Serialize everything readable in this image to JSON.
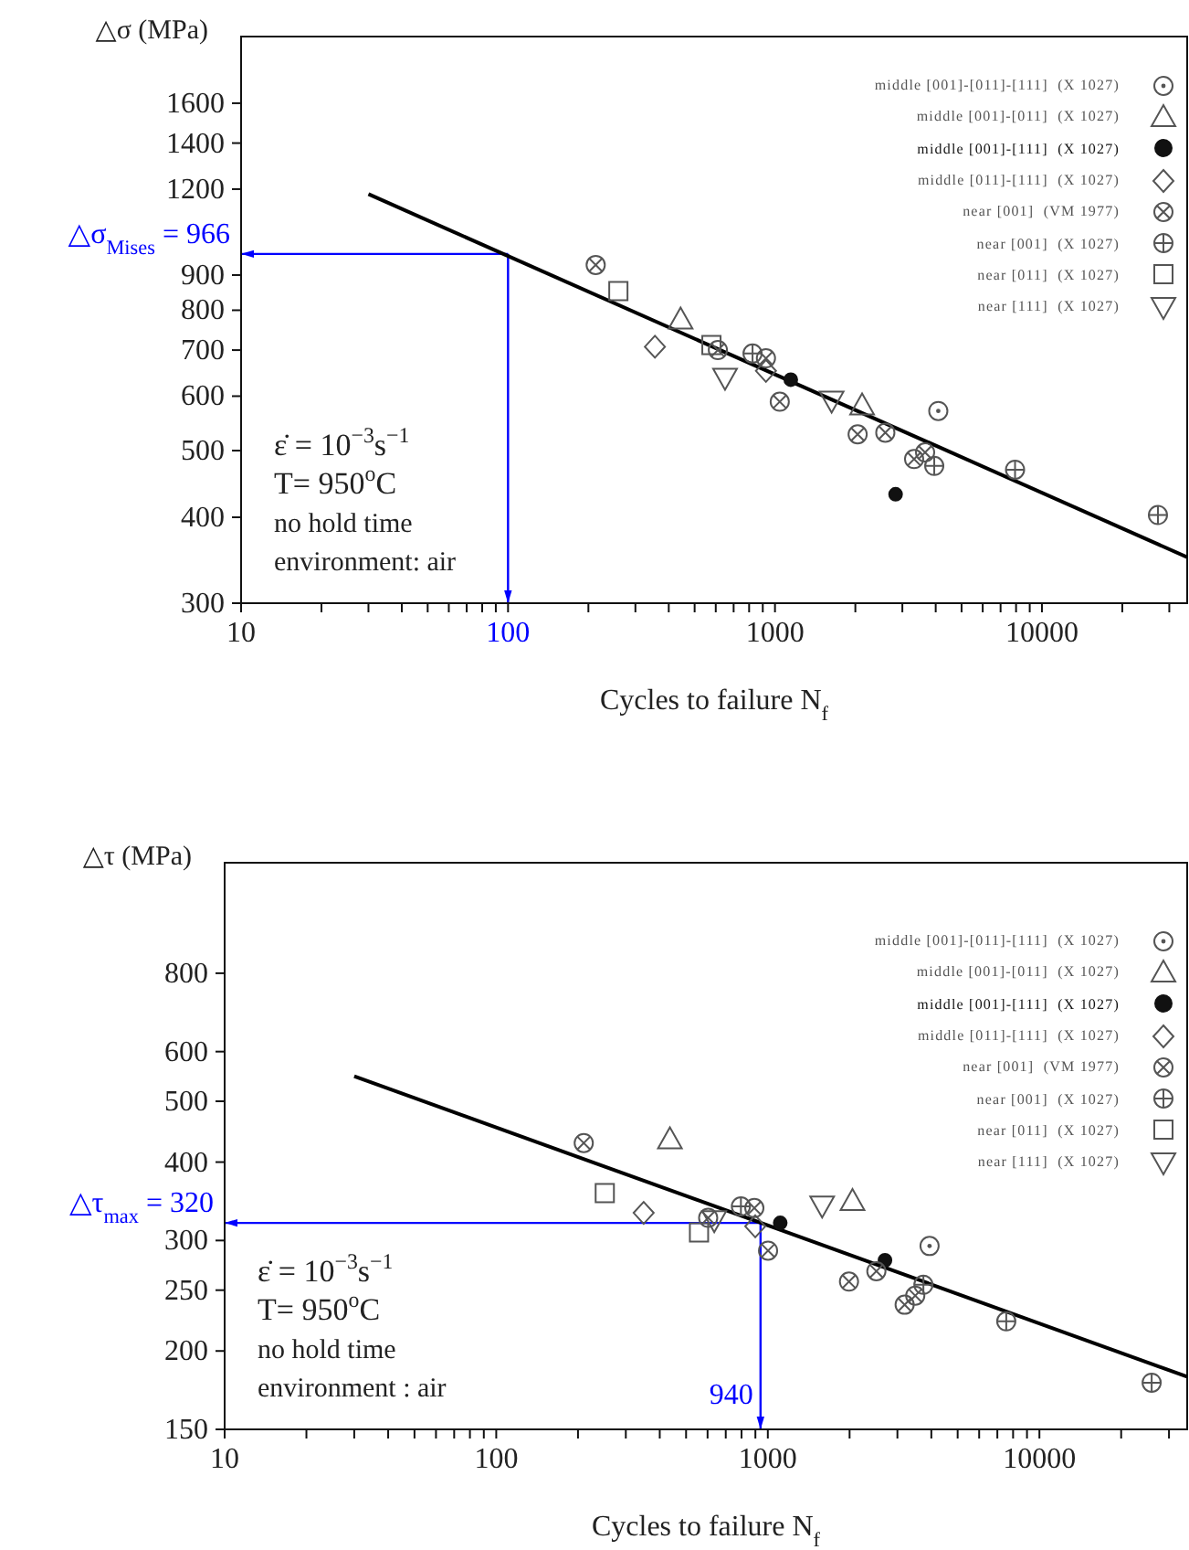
{
  "chart_data": [
    {
      "type": "scatter",
      "xlabel": "Cycles to failure N$_{f}$",
      "ylabel": "△σ (MPa)",
      "log": "xy",
      "legend": "top right",
      "xlim": [
        10,
        35000
      ],
      "ylim": [
        300,
        2000
      ],
      "xticks": [
        10,
        {
          "value": 20,
          "label": null
        },
        {
          "value": 30,
          "label": null
        },
        {
          "value": 40,
          "label": null
        },
        {
          "value": 50,
          "label": null
        },
        {
          "value": 60,
          "label": null
        },
        {
          "value": 70,
          "label": null
        },
        {
          "value": 80,
          "label": null
        },
        {
          "value": 90,
          "label": null
        },
        100,
        {
          "value": 200,
          "label": null
        },
        {
          "value": 300,
          "label": null
        },
        {
          "value": 400,
          "label": null
        },
        {
          "value": 500,
          "label": null
        },
        {
          "value": 600,
          "label": null
        },
        {
          "value": 700,
          "label": null
        },
        {
          "value": 800,
          "label": null
        },
        {
          "value": 900,
          "label": null
        },
        1000,
        {
          "value": 2000,
          "label": null
        },
        {
          "value": 3000,
          "label": null
        },
        {
          "value": 4000,
          "label": null
        },
        {
          "value": 5000,
          "label": null
        },
        {
          "value": 6000,
          "label": null
        },
        {
          "value": 7000,
          "label": null
        },
        {
          "value": 8000,
          "label": null
        },
        {
          "value": 9000,
          "label": null
        },
        10000,
        {
          "value": 20000,
          "label": null
        },
        {
          "value": 30000,
          "label": null
        }
      ],
      "yticks": [
        300,
        400,
        500,
        600,
        700,
        800,
        900,
        1200,
        1400,
        1600
      ],
      "series": [
        {
          "name": "middle [001]-[011]-[111]  (X 1027)",
          "color": "#555555",
          "marker": "circle-dot",
          "x": [
            4090
          ],
          "values": [
            571
          ]
        },
        {
          "name": "middle [001]-[011]  (X 1027)",
          "color": "#555555",
          "marker": "triangle",
          "x": [
            443,
            2120
          ],
          "values": [
            776,
            582
          ]
        },
        {
          "name": "middle [001]-[111]  (X 1027)",
          "color": "#111111",
          "marker": "circle",
          "x": [
            1146,
            2830
          ],
          "values": [
            634,
            432
          ]
        },
        {
          "name": "middle [011]-[111]  (X 1027)",
          "color": "#555555",
          "marker": "diamond",
          "x": [
            355,
            925
          ],
          "values": [
            708,
            653
          ]
        },
        {
          "name": "near [001]  (VM 1977)",
          "color": "#555555",
          "marker": "circle-x",
          "x": [
            213,
            611,
            925,
            1042,
            2040,
            2590,
            3320,
            3650
          ],
          "values": [
            931,
            700,
            681,
            589,
            528,
            531,
            486,
            497
          ]
        },
        {
          "name": "near [001]  (X 1027)",
          "color": "#555555",
          "marker": "circle-plus",
          "x": [
            824,
            3950,
            7930,
            27200
          ],
          "values": [
            692,
            475,
            469,
            403
          ]
        },
        {
          "name": "near [011]  (X 1027)",
          "color": "#555555",
          "marker": "square",
          "x": [
            259,
            578
          ],
          "values": [
            853,
            712
          ]
        },
        {
          "name": "near [111]  (X 1027)",
          "color": "#555555",
          "marker": "triangle-down",
          "x": [
            650,
            1630
          ],
          "values": [
            638,
            591
          ]
        },
        {
          "type": "line",
          "color": "#000000",
          "x": [
            30,
            35000
          ],
          "values": [
            1180,
            350
          ]
        }
      ],
      "ref_lines": [
        {
          "axis": "y",
          "value": 966,
          "label": "△σ$_{Mises}$ = 966",
          "color": "#0000ff"
        },
        {
          "axis": "x",
          "value": 100,
          "color": "#0000ff"
        }
      ],
      "annotations": [
        "ε̇ = 10$^{−3}$s$^{−1}$",
        "T= 950$^{o}$C",
        "no hold time",
        "environment:  air"
      ]
    },
    {
      "type": "scatter",
      "xlabel": "Cycles to failure N$_{f}$",
      "ylabel": "△τ (MPa)",
      "log": "xy",
      "legend": "top right",
      "xlim": [
        10,
        35000
      ],
      "ylim": [
        150,
        1200
      ],
      "xticks": [
        10,
        {
          "value": 20,
          "label": null
        },
        {
          "value": 30,
          "label": null
        },
        {
          "value": 40,
          "label": null
        },
        {
          "value": 50,
          "label": null
        },
        {
          "value": 60,
          "label": null
        },
        {
          "value": 70,
          "label": null
        },
        {
          "value": 80,
          "label": null
        },
        {
          "value": 90,
          "label": null
        },
        100,
        {
          "value": 200,
          "label": null
        },
        {
          "value": 300,
          "label": null
        },
        {
          "value": 400,
          "label": null
        },
        {
          "value": 500,
          "label": null
        },
        {
          "value": 600,
          "label": null
        },
        {
          "value": 700,
          "label": null
        },
        {
          "value": 800,
          "label": null
        },
        {
          "value": 900,
          "label": null
        },
        1000,
        {
          "value": 2000,
          "label": null
        },
        {
          "value": 3000,
          "label": null
        },
        {
          "value": 4000,
          "label": null
        },
        {
          "value": 5000,
          "label": null
        },
        {
          "value": 6000,
          "label": null
        },
        {
          "value": 7000,
          "label": null
        },
        {
          "value": 8000,
          "label": null
        },
        {
          "value": 9000,
          "label": null
        },
        10000,
        {
          "value": 20000,
          "label": null
        },
        {
          "value": 30000,
          "label": null
        }
      ],
      "yticks": [
        150,
        200,
        250,
        300,
        400,
        500,
        600,
        800
      ],
      "series": [
        {
          "name": "middle [001]-[011]-[111]  (X 1027)",
          "color": "#555555",
          "marker": "circle-dot",
          "x": [
            3940
          ],
          "values": [
            294
          ]
        },
        {
          "name": "middle [001]-[011]  (X 1027)",
          "color": "#555555",
          "marker": "triangle",
          "x": [
            436,
            2050
          ],
          "values": [
            435,
            347
          ]
        },
        {
          "name": "middle [001]-[111]  (X 1027)",
          "color": "#111111",
          "marker": "circle",
          "x": [
            1111,
            2700
          ],
          "values": [
            320,
            279
          ]
        },
        {
          "name": "middle [011]-[111]  (X 1027)",
          "color": "#555555",
          "marker": "diamond",
          "x": [
            349,
            899
          ],
          "values": [
            332,
            316
          ]
        },
        {
          "name": "near [001]  (VM 1977)",
          "color": "#555555",
          "marker": "circle-x",
          "x": [
            210,
            603,
            892,
            1002,
            1990,
            2510,
            3190,
            3490
          ],
          "values": [
            429,
            326,
            338,
            289,
            258,
            268,
            237,
            245
          ]
        },
        {
          "name": "near [001]  (X 1027)",
          "color": "#555555",
          "marker": "circle-plus",
          "x": [
            796,
            3740,
            7550,
            25900
          ],
          "values": [
            340,
            255,
            223,
            178
          ]
        },
        {
          "name": "near [011]  (X 1027)",
          "color": "#555555",
          "marker": "square",
          "x": [
            251,
            558
          ],
          "values": [
            357,
            309
          ]
        },
        {
          "name": "near [111]  (X 1027)",
          "color": "#555555",
          "marker": "triangle-down",
          "x": [
            635,
            1585
          ],
          "values": [
            323,
            341
          ]
        },
        {
          "type": "line",
          "color": "#000000",
          "x": [
            30,
            35000
          ],
          "values": [
            548,
            182
          ]
        }
      ],
      "ref_lines": [
        {
          "axis": "y",
          "value": 320,
          "label": "△τ$_{max}$ = 320",
          "color": "#0000ff"
        },
        {
          "axis": "x",
          "value": 940,
          "label": "940",
          "color": "#0000ff"
        }
      ],
      "annotations": [
        "ε̇ = 10$^{−3}$s$^{−1}$",
        "T= 950$^{o}$C",
        "no hold time",
        "environment : air"
      ]
    }
  ]
}
